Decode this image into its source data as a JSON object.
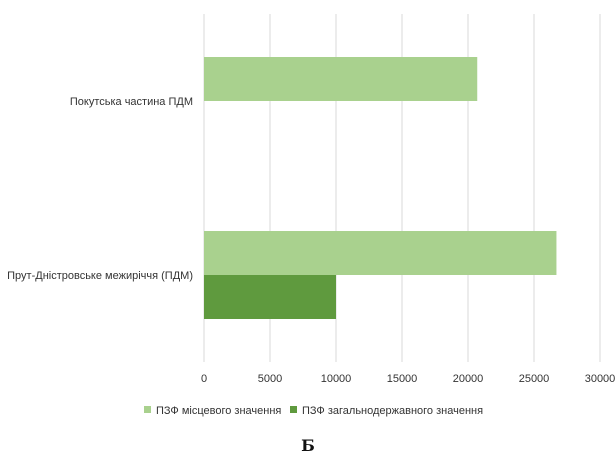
{
  "chart_data": {
    "type": "bar",
    "orientation": "horizontal",
    "categories": [
      "Покутська частина ПДМ",
      "Прут-Дністровське межиріччя (ПДМ)"
    ],
    "series": [
      {
        "name": "ПЗФ місцевого значення",
        "color": "#a9d18e",
        "values": [
          20700,
          26700
        ]
      },
      {
        "name": "ПЗФ загальнодержавного значення",
        "color": "#5f9a3e",
        "values": [
          0,
          10000
        ]
      }
    ],
    "xlim": [
      0,
      30000
    ],
    "xticks": [
      0,
      5000,
      10000,
      15000,
      20000,
      25000,
      30000
    ],
    "grid": true,
    "legend_position": "bottom"
  },
  "caption": "Б"
}
